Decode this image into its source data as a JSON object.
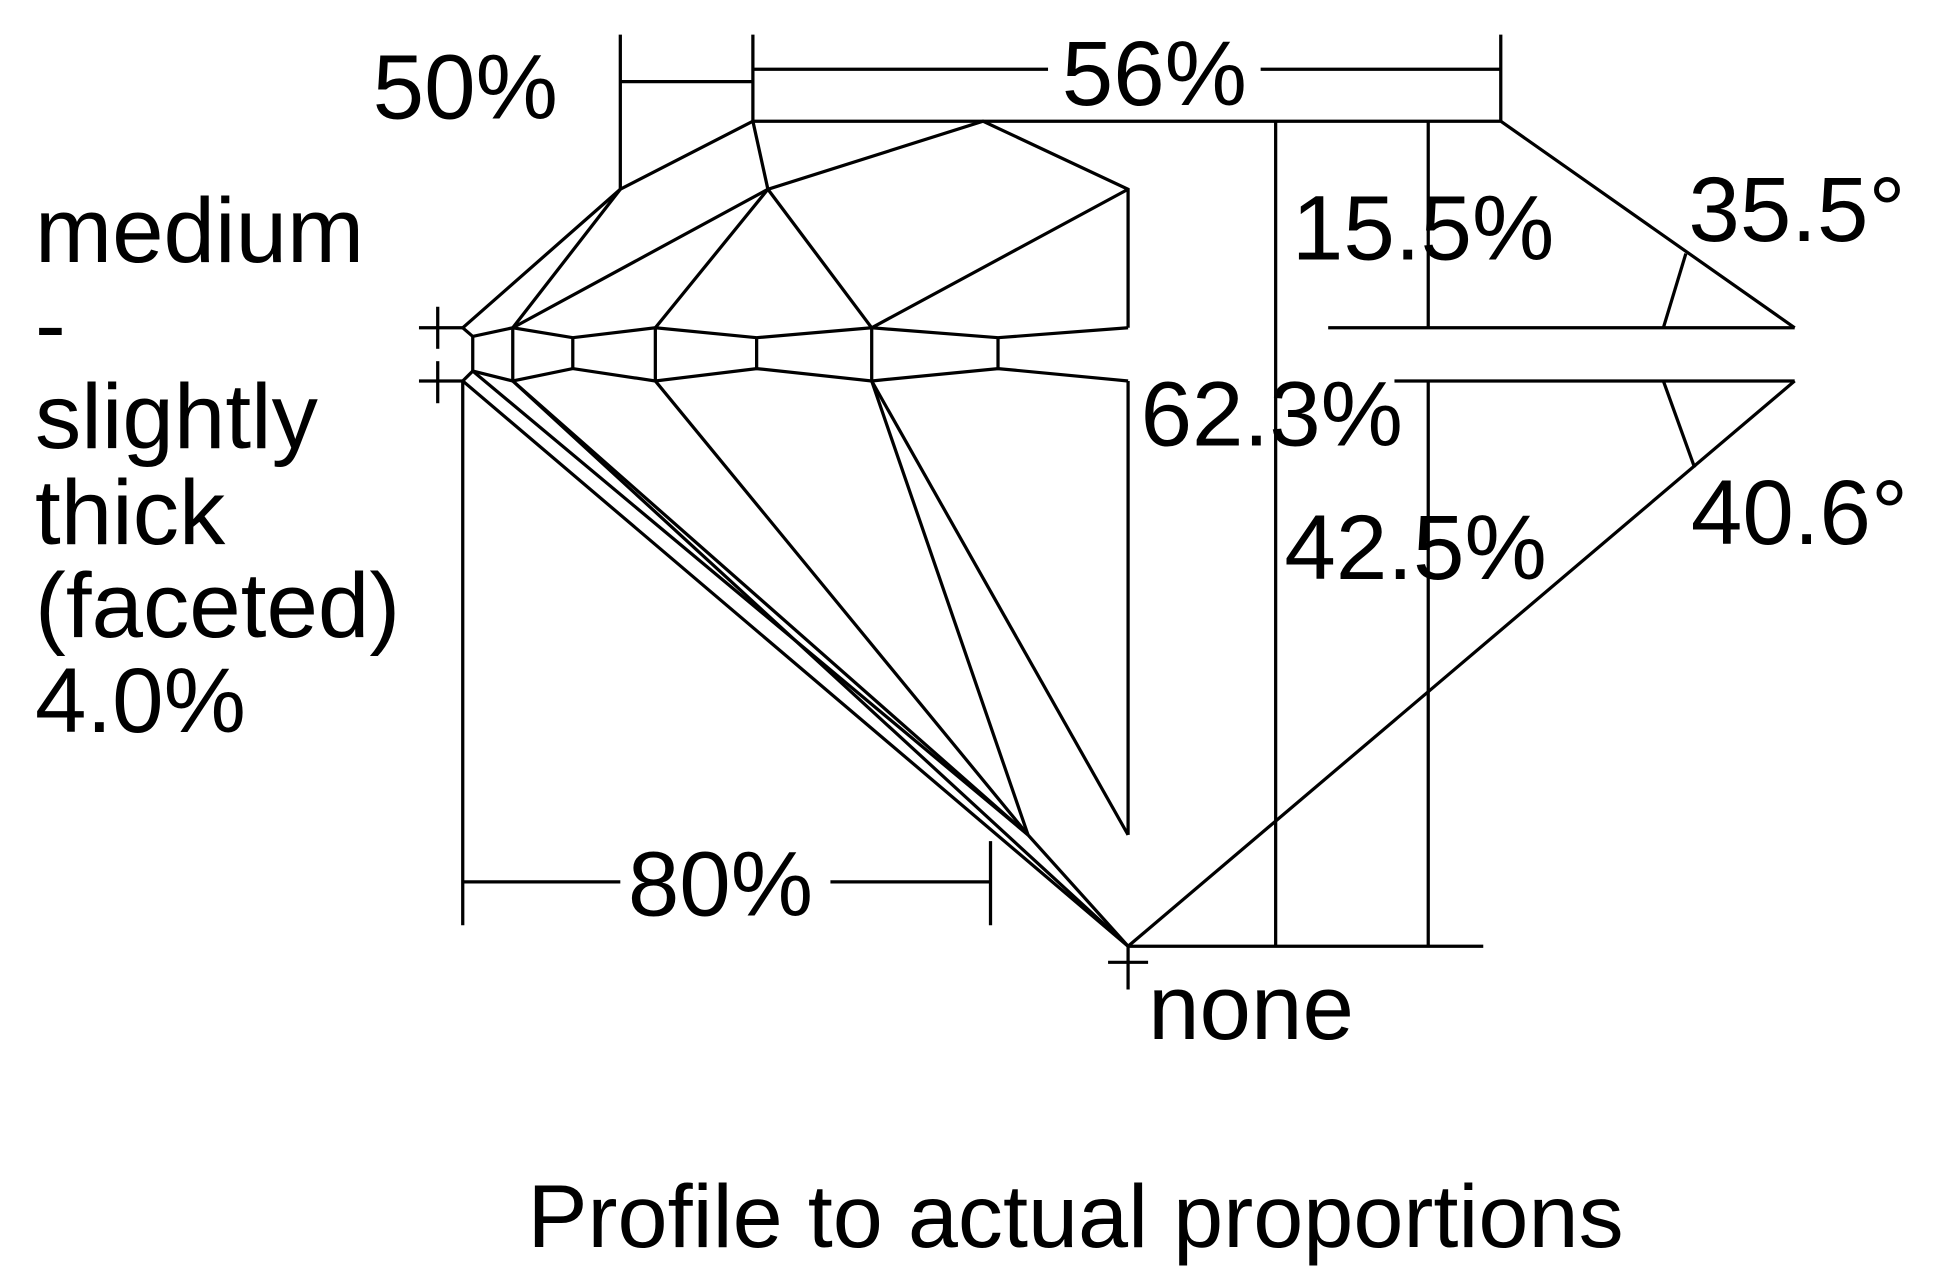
{
  "diagram": {
    "title": "Profile to actual proportions",
    "colors": {
      "line": "#000000",
      "background": "#ffffff"
    },
    "labels": {
      "crown_height_left": "50%",
      "table": "56%",
      "girdle": [
        "medium",
        "-",
        "slightly",
        "thick",
        "(faceted)",
        "4.0%"
      ],
      "crown_height": "15.5%",
      "crown_angle": "35.5°",
      "total_depth": "62.3%",
      "pavilion_depth": "42.5%",
      "pavilion_angle": "40.6°",
      "lower_half": "80%",
      "culet": "none"
    }
  }
}
